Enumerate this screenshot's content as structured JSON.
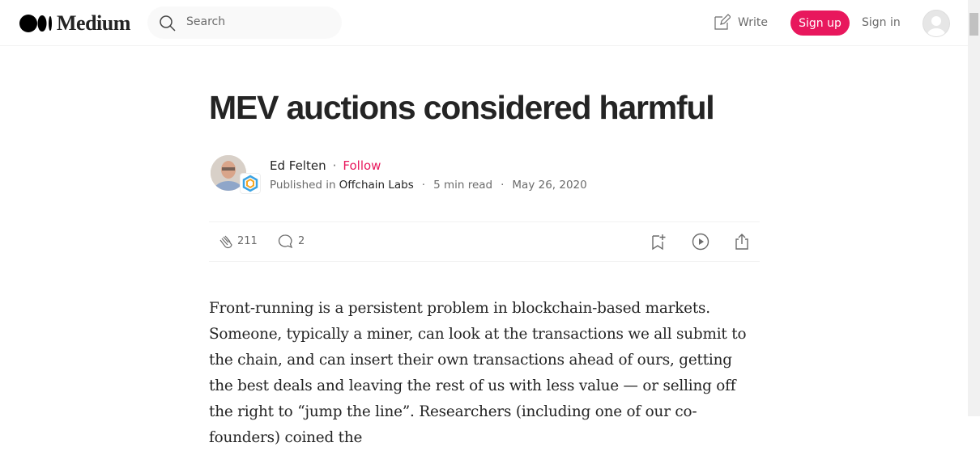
{
  "header": {
    "logo": "Medium",
    "search_placeholder": "Search",
    "write": "Write",
    "sign_up": "Sign up",
    "sign_in": "Sign in"
  },
  "article": {
    "title": "MEV auctions considered harmful",
    "author": "Ed Felten",
    "separator": "·",
    "follow": "Follow",
    "published_in": "Published in",
    "publication": "Offchain Labs",
    "read_time": "5 min read",
    "date": "May 26, 2020",
    "claps": "211",
    "responses": "2",
    "paragraph": "Front-running is a persistent problem in blockchain-based markets. Someone, typically a miner, can look at the transactions we all submit to the chain, and can insert their own transactions ahead of ours, getting the best deals and leaving the rest of us with less value — or selling off the right to “jump the line”. Researchers (including one of our co-founders) coined the"
  }
}
